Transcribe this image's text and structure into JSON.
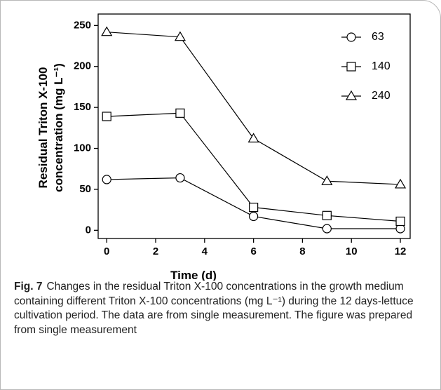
{
  "chart_data": {
    "type": "line",
    "xlabel": "Time (d)",
    "ylabel": [
      "Residual Triton  X-100",
      "concentration (mg L⁻¹)"
    ],
    "x": [
      0,
      3,
      6,
      9,
      12
    ],
    "series": [
      {
        "name": "63",
        "color": "#000000",
        "marker": "circle",
        "values": [
          62,
          64,
          17,
          2,
          2
        ]
      },
      {
        "name": "140",
        "color": "#000000",
        "marker": "square",
        "values": [
          139,
          143,
          28,
          18,
          11
        ]
      },
      {
        "name": "240",
        "color": "#000000",
        "marker": "triangle",
        "values": [
          242,
          236,
          112,
          60,
          56
        ]
      }
    ],
    "xlim": [
      -0.35,
      12.4
    ],
    "xticks": [
      0,
      2,
      4,
      6,
      8,
      10,
      12
    ],
    "ylim": [
      -10,
      264
    ],
    "yticks": [
      0,
      50,
      100,
      150,
      200,
      250
    ],
    "legend": "upper right",
    "grid": false
  },
  "caption": {
    "label": "Fig. 7",
    "text": "Changes in the residual Triton X-100 concentrations in the growth medium containing different Triton X-100 concentrations (mg L⁻¹) during the 12 days-lettuce cultivation period. The data are from single measurement. The figure was prepared from single measurement"
  }
}
